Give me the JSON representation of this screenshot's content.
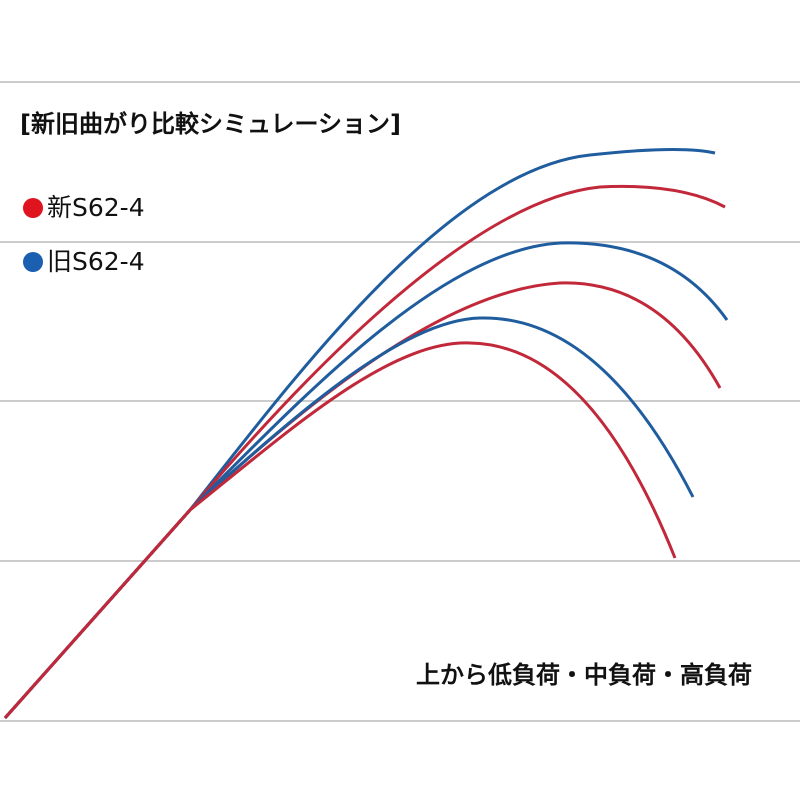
{
  "title": "[新旧曲がり比較シミュレーション]",
  "legend": [
    {
      "label": "新S62-4"
    },
    {
      "label": "旧S62-4"
    }
  ],
  "note": "上から低負荷・中負荷・高負荷"
}
